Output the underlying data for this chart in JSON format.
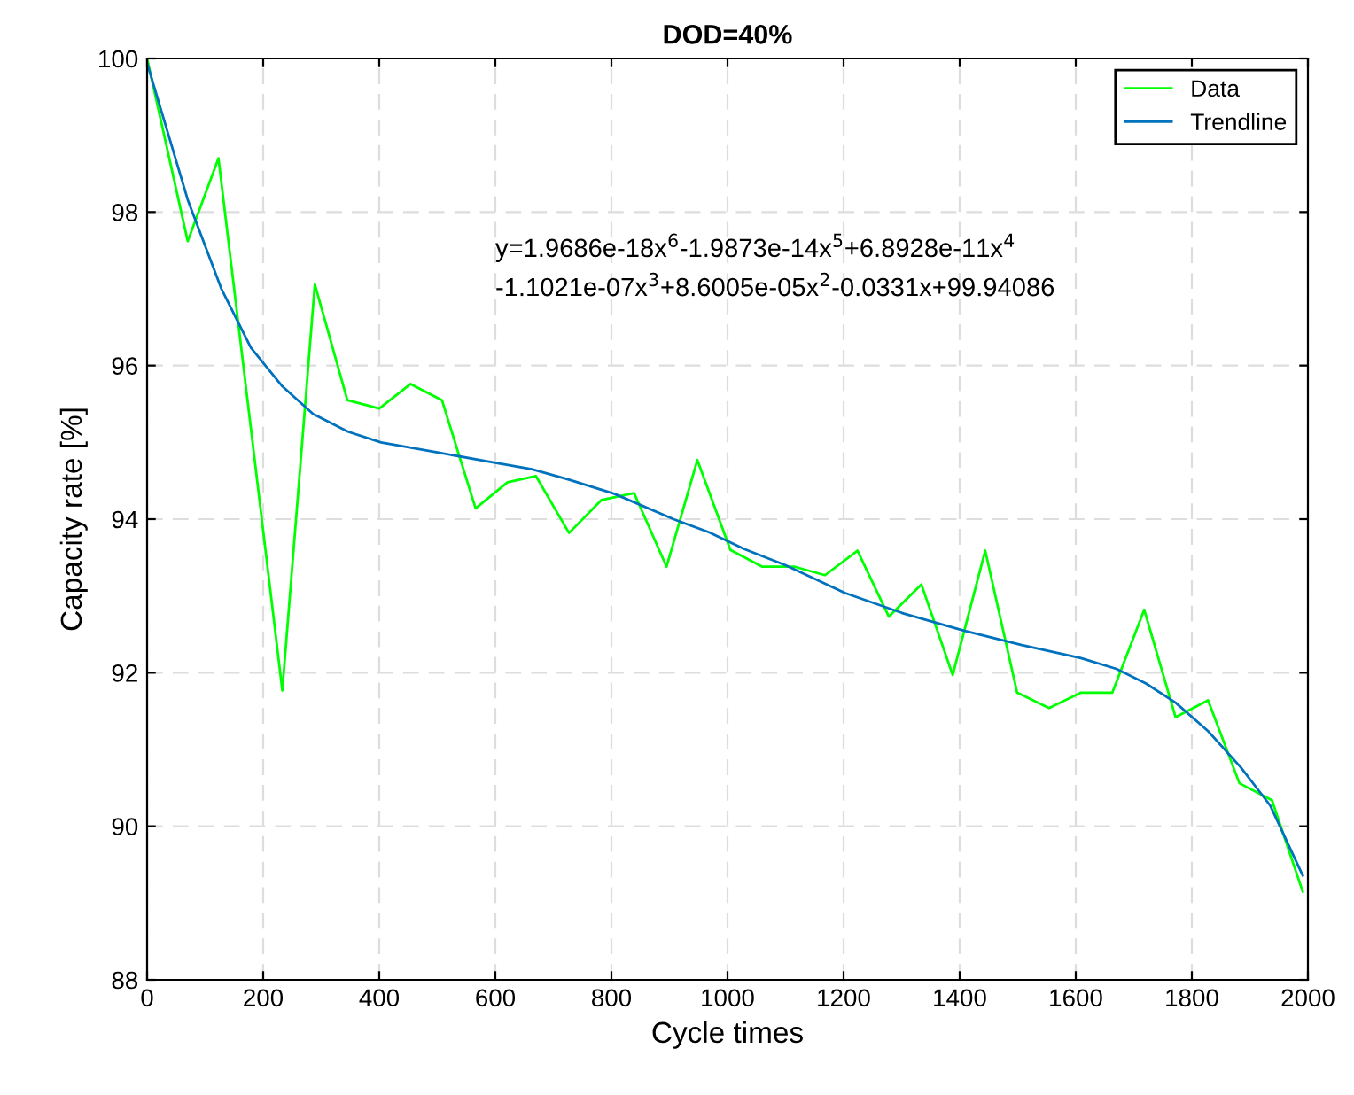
{
  "chart_data": {
    "type": "line",
    "title": "DOD=40%",
    "xlabel": "Cycle times",
    "ylabel": "Capacity rate [%]",
    "xlim": [
      0,
      2000
    ],
    "xticks": [
      0,
      200,
      400,
      600,
      800,
      1000,
      1200,
      1400,
      1600,
      1800,
      2000
    ],
    "ylim": [
      88,
      100
    ],
    "yticks": [
      88,
      90,
      92,
      94,
      96,
      98,
      100
    ],
    "grid": true,
    "legend": "top right",
    "line_style": "solid",
    "marker": "none",
    "annotations": [
      "y=1.9686e-18x$^{6}$-1.9873e-14x$^{5}$+6.8928e-11x$^{4}$\n-1.1021e-07x$^{3}$+8.6005e-05x$^{2}$-0.0331x+99.94086"
    ],
    "series": [
      {
        "name": "Data",
        "color": "#00ff00",
        "x": [
          0,
          70,
          123,
          233,
          289,
          345,
          400,
          454,
          508,
          566,
          621,
          670,
          727,
          783,
          839,
          895,
          948,
          1005,
          1060,
          1116,
          1168,
          1224,
          1278,
          1334,
          1388,
          1444,
          1499,
          1554,
          1609,
          1663,
          1718,
          1772,
          1828,
          1882,
          1938,
          1991
        ],
        "values": [
          100,
          97.62,
          98.7,
          91.77,
          97.06,
          95.55,
          95.44,
          95.76,
          95.55,
          94.14,
          94.48,
          94.56,
          93.82,
          94.25,
          94.34,
          93.38,
          94.77,
          93.6,
          93.38,
          93.38,
          93.27,
          93.59,
          92.73,
          93.15,
          91.97,
          93.59,
          91.74,
          91.54,
          91.74,
          91.74,
          92.82,
          91.42,
          91.64,
          90.56,
          90.34,
          89.15
        ]
      },
      {
        "name": "Trendline",
        "color": "#0072bd",
        "x": [
          0,
          70,
          128,
          179,
          233,
          286,
          346,
          403,
          500,
          602,
          663,
          724,
          805,
          907,
          968,
          1029,
          1100,
          1202,
          1304,
          1406,
          1507,
          1609,
          1670,
          1721,
          1772,
          1828,
          1884,
          1935,
          1991
        ],
        "values": [
          99.94,
          98.16,
          97.0,
          96.23,
          95.73,
          95.37,
          95.14,
          95.0,
          94.87,
          94.73,
          94.65,
          94.52,
          94.33,
          94.0,
          93.83,
          93.61,
          93.4,
          93.04,
          92.77,
          92.55,
          92.36,
          92.19,
          92.05,
          91.86,
          91.61,
          91.24,
          90.77,
          90.27,
          89.36
        ]
      }
    ]
  }
}
